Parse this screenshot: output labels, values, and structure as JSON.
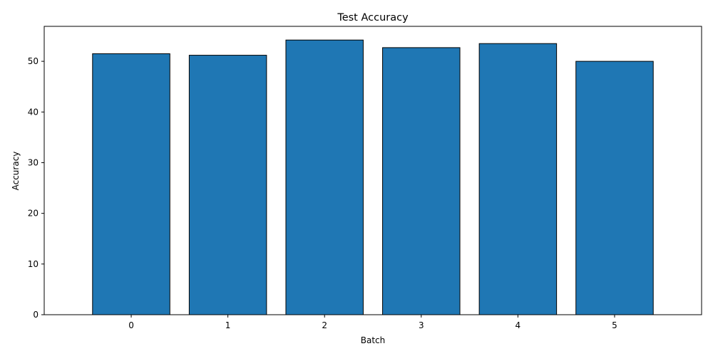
{
  "chart_data": {
    "type": "bar",
    "title": "Test Accuracy",
    "xlabel": "Batch",
    "ylabel": "Accuracy",
    "categories": [
      "0",
      "1",
      "2",
      "3",
      "4",
      "5"
    ],
    "values": [
      51.5,
      51.2,
      54.2,
      52.7,
      53.5,
      50.0
    ],
    "xlim": [
      -0.9,
      5.9
    ],
    "ylim": [
      0,
      56.9
    ],
    "yticks": [
      0,
      10,
      20,
      30,
      40,
      50
    ],
    "bar_color": "#1f77b4",
    "bar_edge_color": "#000000",
    "grid": false,
    "legend": "none"
  }
}
